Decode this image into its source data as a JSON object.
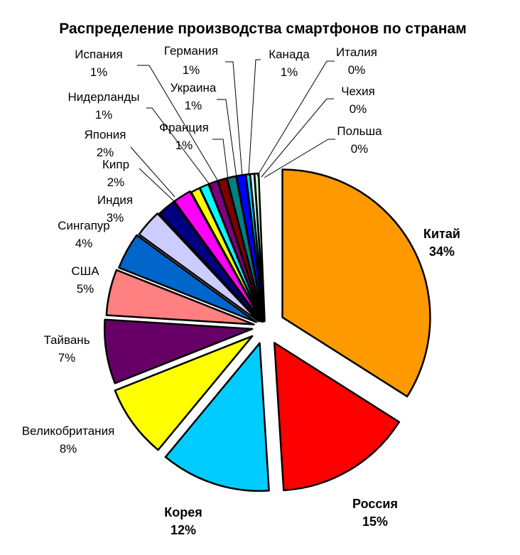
{
  "chart_data": {
    "type": "pie",
    "title": "Распределение производства смартфонов по странам",
    "slices": [
      {
        "name": "Китай",
        "value": 34,
        "label": "34%",
        "color": "#ff9900",
        "bold": true
      },
      {
        "name": "Россия",
        "value": 15,
        "label": "15%",
        "color": "#ff0000",
        "bold": true
      },
      {
        "name": "Корея",
        "value": 12,
        "label": "12%",
        "color": "#00ccff",
        "bold": true
      },
      {
        "name": "Великобритания",
        "value": 8,
        "label": "8%",
        "color": "#ffff00",
        "bold": false
      },
      {
        "name": "Тайвань",
        "value": 7,
        "label": "7%",
        "color": "#660066",
        "bold": false
      },
      {
        "name": "США",
        "value": 5,
        "label": "5%",
        "color": "#ff8080",
        "bold": false
      },
      {
        "name": "Сингапур",
        "value": 4,
        "label": "4%",
        "color": "#0066cc",
        "bold": false
      },
      {
        "name": "Индия",
        "value": 3,
        "label": "3%",
        "color": "#ccccff",
        "bold": false
      },
      {
        "name": "Кипр",
        "value": 2,
        "label": "2%",
        "color": "#000080",
        "bold": false
      },
      {
        "name": "Япония",
        "value": 2,
        "label": "2%",
        "color": "#ff00ff",
        "bold": false
      },
      {
        "name": "Нидерланды",
        "value": 1,
        "label": "1%",
        "color": "#ffff00",
        "bold": false
      },
      {
        "name": "Испания",
        "value": 1,
        "label": "1%",
        "color": "#00ffff",
        "bold": false
      },
      {
        "name": "Франция",
        "value": 1,
        "label": "1%",
        "color": "#800080",
        "bold": false
      },
      {
        "name": "Украина",
        "value": 1,
        "label": "1%",
        "color": "#800000",
        "bold": false
      },
      {
        "name": "Германия",
        "value": 1,
        "label": "1%",
        "color": "#008080",
        "bold": false
      },
      {
        "name": "Канада",
        "value": 1,
        "label": "1%",
        "color": "#0000ff",
        "bold": false
      },
      {
        "name": "Италия",
        "value": 0,
        "label": "0%",
        "color": "#00ccff",
        "bold": false
      },
      {
        "name": "Чехия",
        "value": 0,
        "label": "0%",
        "color": "#ccffff",
        "bold": false
      },
      {
        "name": "Польша",
        "value": 0,
        "label": "0%",
        "color": "#ccffcc",
        "bold": false
      }
    ],
    "slice_outline_color": "#000000",
    "exploded": true,
    "start": "12 o'clock",
    "direction": "clockwise",
    "legend": "none",
    "data_labels": "category name and percentage"
  }
}
